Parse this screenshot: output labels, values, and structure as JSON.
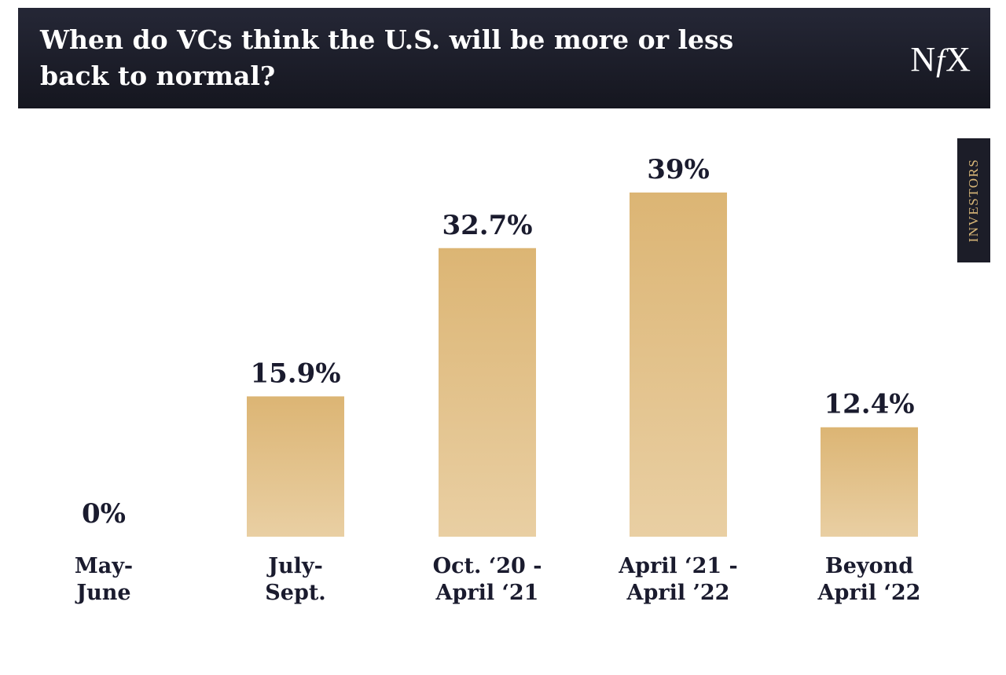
{
  "header": {
    "title_line1": "When do VCs think the U.S. will be more or less",
    "title_line2": "back to normal?",
    "logo_n": "N",
    "logo_f": "f",
    "logo_x": "X"
  },
  "side_tab": {
    "label": "INVESTORS"
  },
  "colors": {
    "header_bg": "#1a1b26",
    "bar_top": "#dcb574",
    "bar_bottom": "#e9cfa3",
    "text": "#1a1b2e",
    "accent": "#d9b778"
  },
  "chart_data": {
    "type": "bar",
    "categories": [
      [
        "May-",
        "June"
      ],
      [
        "July-",
        "Sept."
      ],
      [
        "Oct. ‘20 -",
        "April ‘21"
      ],
      [
        "April ‘21 -",
        "April ’22"
      ],
      [
        "Beyond",
        "April ‘22"
      ]
    ],
    "values": [
      0,
      15.9,
      32.7,
      39,
      12.4
    ],
    "labels": [
      "0%",
      "15.9%",
      "32.7%",
      "39%",
      "12.4%"
    ],
    "ylim": [
      0,
      39
    ],
    "grid": false,
    "legend": "none"
  }
}
